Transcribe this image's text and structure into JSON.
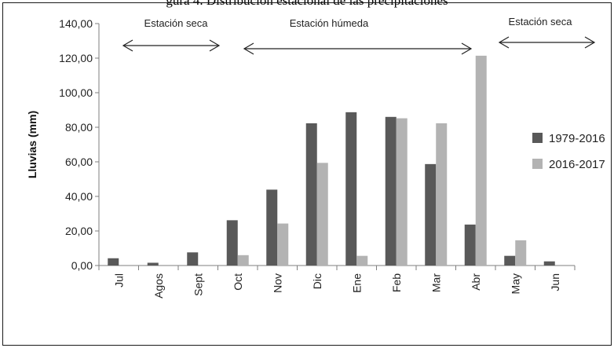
{
  "caption": "gura 4. Distribución estacional de las precipitaciones",
  "chart_data": {
    "type": "bar",
    "ylabel": "Lluvias (mm)",
    "ylim": [
      0,
      140
    ],
    "yticks": [
      "0,00",
      "20,00",
      "40,00",
      "60,00",
      "80,00",
      "100,00",
      "120,00",
      "140,00"
    ],
    "categories": [
      "Jul",
      "Agos",
      "Sept",
      "Oct",
      "Nov",
      "Dic",
      "Ene",
      "Feb",
      "Mar",
      "Abr",
      "May",
      "Jun"
    ],
    "series": [
      {
        "name": "1979-2016",
        "color": "#595959",
        "values": [
          4.2,
          1.6,
          7.6,
          26.2,
          43.9,
          82.3,
          88.7,
          86.0,
          58.7,
          23.7,
          5.6,
          2.4
        ]
      },
      {
        "name": "2016-2017",
        "color": "#b3b3b3",
        "values": [
          0,
          0,
          0,
          6.0,
          24.3,
          59.4,
          5.6,
          85.2,
          82.3,
          121.4,
          14.6,
          0
        ]
      }
    ],
    "legend_position": "right",
    "annotations": [
      {
        "label": "Estación seca",
        "from_category": "Jul",
        "to_category": "Sept"
      },
      {
        "label": "Estación húmeda",
        "from_category": "Oct",
        "to_category": "Abr"
      },
      {
        "label": "Estación seca",
        "from_category": "May",
        "to_category": "Jun"
      }
    ]
  }
}
